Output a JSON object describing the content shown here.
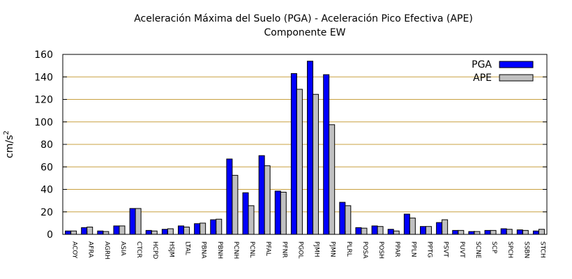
{
  "chart_data": {
    "type": "bar",
    "title": "Aceleración Máxima del Suelo (PGA) -  Aceleración Pico Efectiva (APE)",
    "subtitle": "Componente EW",
    "ylabel": "cm/s",
    "ylabel_sup": "2",
    "xlabel": "",
    "ylim": [
      0,
      160
    ],
    "yticks": [
      "0",
      "20",
      "40",
      "60",
      "80",
      "100",
      "120",
      "140",
      "160"
    ],
    "grid": "horizontal",
    "legend": "top-right",
    "categories": [
      "ACOY",
      "AFRA",
      "AGRH",
      "ASIA",
      "CTCR",
      "HCPD",
      "HSJM",
      "LTAL",
      "PBNA",
      "PBNH",
      "PCNH",
      "PCNL",
      "PFAL",
      "PFNR",
      "PGOL",
      "PJMH",
      "PJMN",
      "PLRL",
      "POSA",
      "POSH",
      "PPAR",
      "PPLN",
      "PPTG",
      "PSVT",
      "PUVT",
      "SCNE",
      "SCP",
      "SPCH",
      "SSBN",
      "STCH"
    ],
    "series": [
      {
        "name": "PGA",
        "color": "#0000ff",
        "values": [
          3,
          6,
          3,
          7.5,
          23,
          3.5,
          4.5,
          7.5,
          9.5,
          13,
          67,
          37,
          70,
          38.5,
          143,
          154,
          142,
          28.5,
          6,
          7.5,
          4.5,
          18,
          7,
          10.5,
          3.5,
          2.5,
          3.5,
          5,
          4,
          3
        ]
      },
      {
        "name": "APE",
        "color": "#c0c0c0",
        "values": [
          3,
          6.5,
          2.5,
          7.5,
          23,
          3,
          5,
          6.5,
          10,
          13.5,
          52.5,
          25.5,
          61,
          37.5,
          129,
          124.5,
          97.5,
          25.5,
          5.5,
          7,
          3,
          14.5,
          7,
          13,
          3.5,
          2.5,
          3.5,
          4.5,
          3.5,
          4.5
        ]
      }
    ]
  }
}
